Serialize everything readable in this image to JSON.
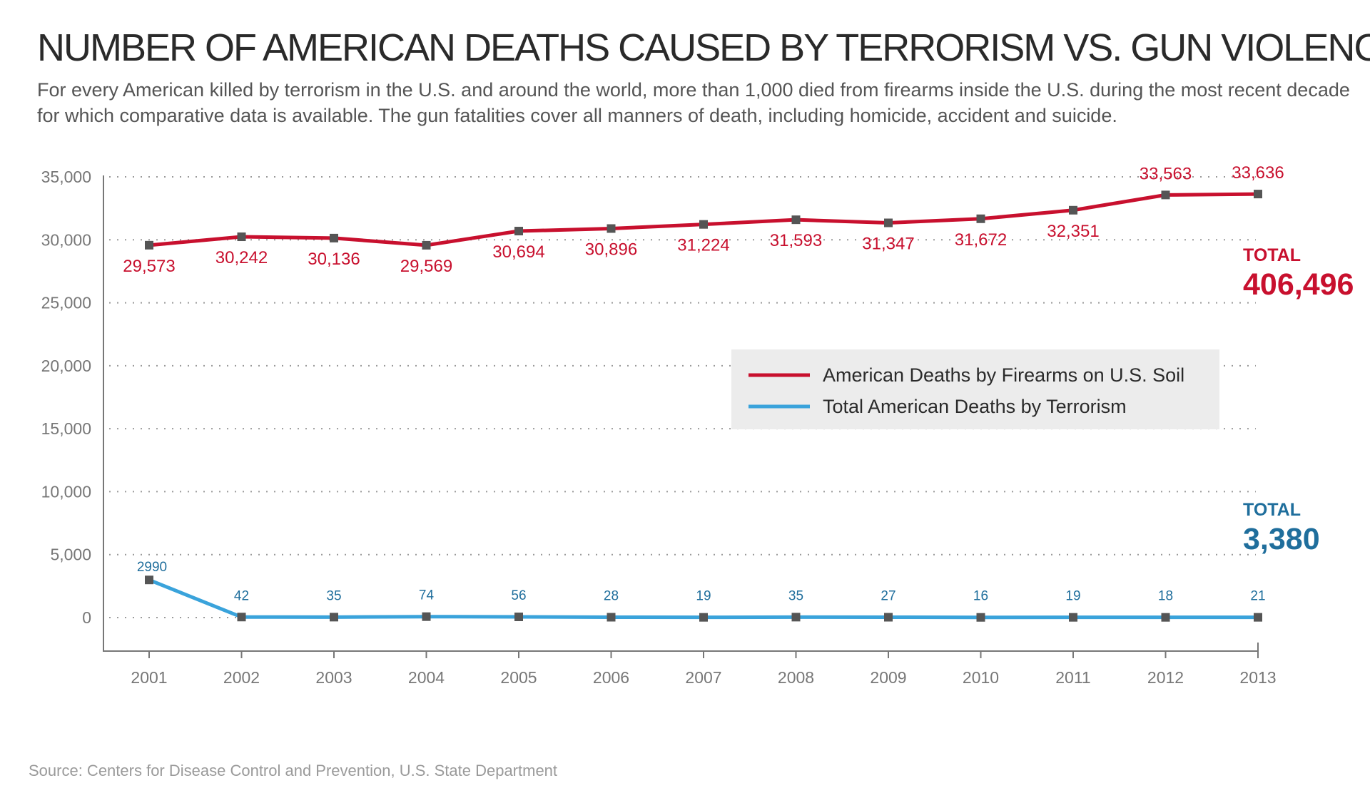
{
  "header": {
    "title": "NUMBER OF AMERICAN DEATHS CAUSED BY TERRORISM VS. GUN VIOLENCE",
    "subtitle": "For every American killed by terrorism in the U.S. and around the world, more than 1,000 died from firearms inside the U.S. during the most recent decade for which comparative data is available. The gun fatalities cover all manners of death, including homicide, accident and suicide."
  },
  "source": "Source: Centers for Disease Control and Prevention, U.S. State Department",
  "chart_data": {
    "type": "line",
    "title": "NUMBER OF AMERICAN DEATHS CAUSED BY TERRORISM VS. GUN VIOLENCE",
    "xlabel": "",
    "ylabel": "",
    "categories": [
      "2001",
      "2002",
      "2003",
      "2004",
      "2005",
      "2006",
      "2007",
      "2008",
      "2009",
      "2010",
      "2011",
      "2012",
      "2013"
    ],
    "ylim": [
      0,
      35000
    ],
    "yticks": [
      0,
      5000,
      10000,
      15000,
      20000,
      25000,
      30000,
      35000
    ],
    "ytick_labels": [
      "0",
      "5,000",
      "10,000",
      "15,000",
      "20,000",
      "25,000",
      "30,000",
      "35,000"
    ],
    "grid": true,
    "legend_position": "center-right",
    "series": [
      {
        "name": "American Deaths by Firearms on U.S. Soil",
        "color": "#c8102e",
        "values": [
          29573,
          30242,
          30136,
          29569,
          30694,
          30896,
          31224,
          31593,
          31347,
          31672,
          32351,
          33563,
          33636
        ],
        "labels": [
          "29,573",
          "30,242",
          "30,136",
          "29,569",
          "30,694",
          "30,896",
          "31,224",
          "31,593",
          "31,347",
          "31,672",
          "32,351",
          "33,563",
          "33,636"
        ],
        "total_label": "TOTAL",
        "total_value": "406,496"
      },
      {
        "name": "Total American Deaths by Terrorism",
        "color": "#3aa3db",
        "label_color": "#1f6e9c",
        "values": [
          2990,
          42,
          35,
          74,
          56,
          28,
          19,
          35,
          27,
          16,
          19,
          18,
          21
        ],
        "labels": [
          "2990",
          "42",
          "35",
          "74",
          "56",
          "28",
          "19",
          "35",
          "27",
          "16",
          "19",
          "18",
          "21"
        ],
        "total_label": "TOTAL",
        "total_value": "3,380"
      }
    ],
    "marker_color": "#555555"
  }
}
